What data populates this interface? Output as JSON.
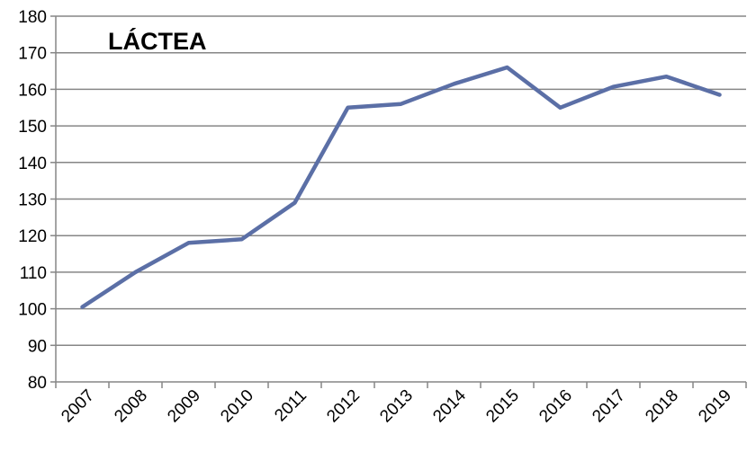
{
  "chart_data": {
    "type": "line",
    "title": "LÁCTEA",
    "xlabel": "",
    "ylabel": "",
    "categories": [
      "2007",
      "2008",
      "2009",
      "2010",
      "2011",
      "2012",
      "2013",
      "2014",
      "2015",
      "2016",
      "2017",
      "2018",
      "2019"
    ],
    "series": [
      {
        "values": [
          100.5,
          110,
          118,
          119,
          129,
          155,
          156,
          161.5,
          166,
          155,
          160.7,
          163.5,
          158.5
        ]
      }
    ],
    "ylim": [
      80,
      180
    ],
    "yticks": [
      80,
      90,
      100,
      110,
      120,
      130,
      140,
      150,
      160,
      170,
      180
    ],
    "grid": true,
    "legend": "none",
    "colors": {
      "line": "#5b6fa6",
      "grid": "#868686",
      "axis": "#868686"
    }
  }
}
